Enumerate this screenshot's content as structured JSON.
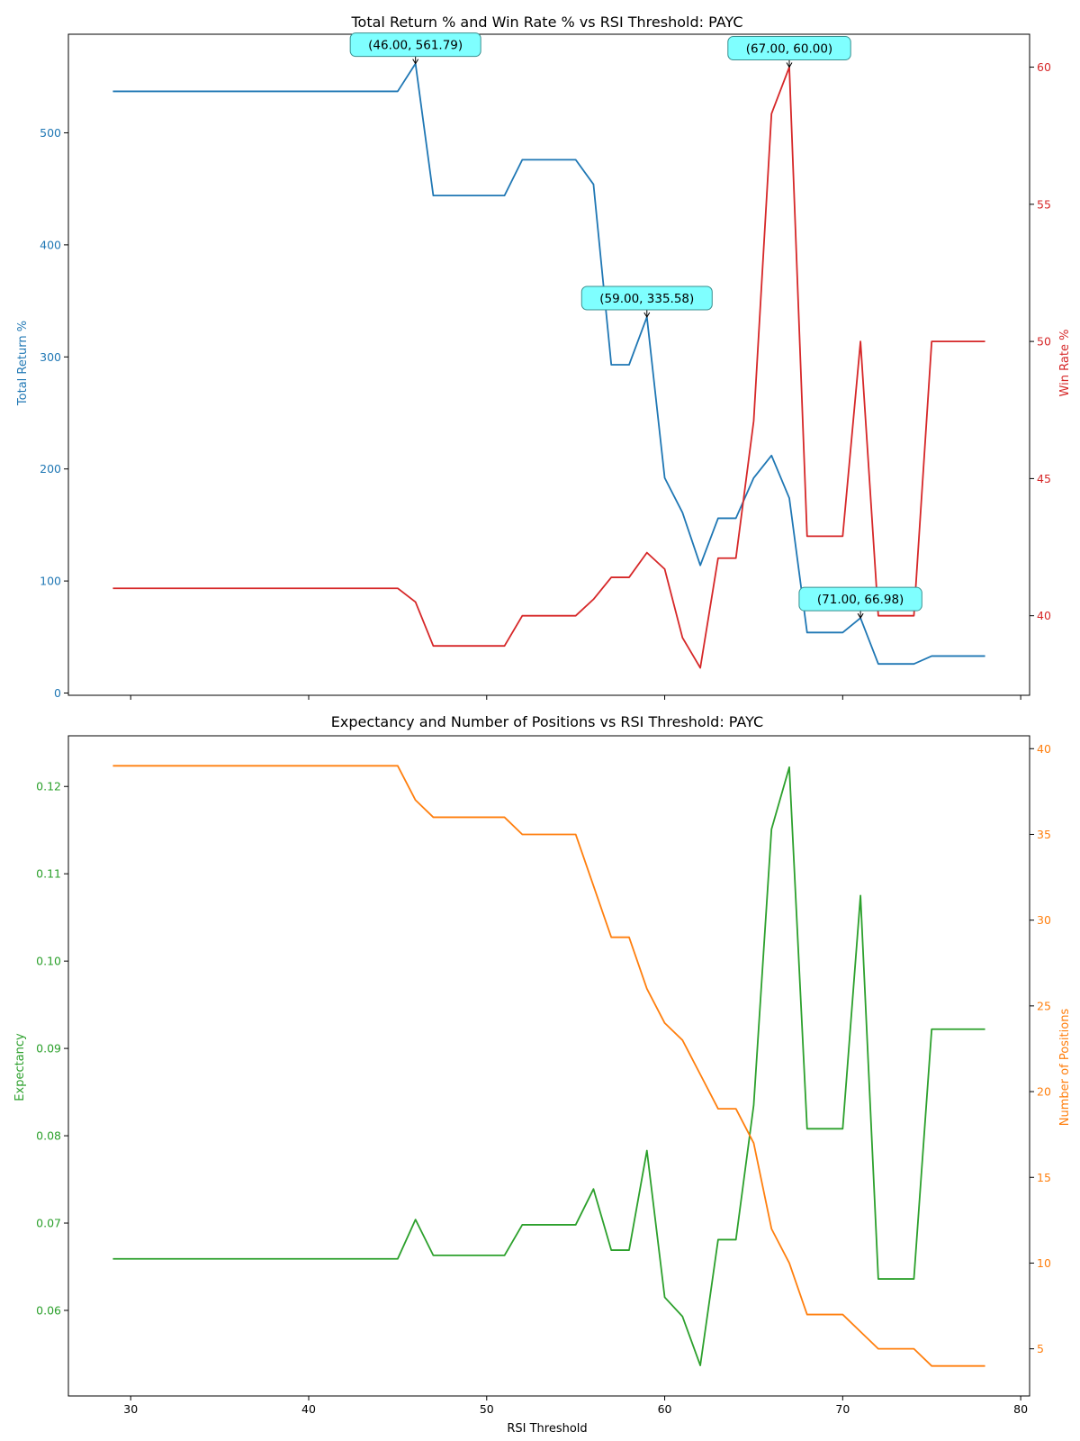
{
  "chart_data": [
    {
      "type": "line",
      "title": "Total Return % and Win Rate % vs RSI Threshold: PAYC",
      "xlabel": "",
      "xticks": [
        30,
        40,
        50,
        60,
        70,
        80
      ],
      "show_xticklabels": false,
      "xlim": [
        26.5,
        80.5
      ],
      "x": [
        29,
        30,
        31,
        32,
        33,
        34,
        35,
        36,
        37,
        38,
        39,
        40,
        41,
        42,
        43,
        44,
        45,
        46,
        47,
        48,
        49,
        50,
        51,
        52,
        53,
        54,
        55,
        56,
        57,
        58,
        59,
        60,
        61,
        62,
        63,
        64,
        65,
        66,
        67,
        68,
        69,
        70,
        71,
        72,
        73,
        74,
        75,
        76,
        77,
        78
      ],
      "left_axis": {
        "label": "Total Return %",
        "color": "#1f77b4",
        "ylim": [
          -2,
          588
        ],
        "ticks": [
          0,
          100,
          200,
          300,
          400,
          500
        ]
      },
      "right_axis": {
        "label": "Win Rate %",
        "color": "#d62728",
        "ylim": [
          37.1,
          61.2
        ],
        "ticks": [
          40,
          45,
          50,
          55,
          60
        ]
      },
      "series": [
        {
          "axis": "left",
          "color": "#1f77b4",
          "values": [
            537,
            537,
            537,
            537,
            537,
            537,
            537,
            537,
            537,
            537,
            537,
            537,
            537,
            537,
            537,
            537,
            537,
            561.79,
            444,
            444,
            444,
            444,
            444,
            476,
            476,
            476,
            476,
            454,
            293,
            293,
            335.58,
            192,
            161,
            114,
            156,
            156,
            192,
            212,
            174,
            54,
            54,
            54,
            66.98,
            26,
            26,
            26,
            33,
            33,
            33,
            33
          ]
        },
        {
          "axis": "right",
          "color": "#d62728",
          "values": [
            41,
            41,
            41,
            41,
            41,
            41,
            41,
            41,
            41,
            41,
            41,
            41,
            41,
            41,
            41,
            41,
            41,
            40.5,
            38.9,
            38.9,
            38.9,
            38.9,
            38.9,
            40,
            40,
            40,
            40,
            40.6,
            41.4,
            41.4,
            42.3,
            41.7,
            39.2,
            38.1,
            42.1,
            42.1,
            47.1,
            58.3,
            60,
            42.9,
            42.9,
            42.9,
            50,
            40,
            40,
            40,
            50,
            50,
            50,
            50
          ]
        }
      ],
      "annotations": [
        {
          "text": "(46.00, 561.79)",
          "x": 46,
          "y": 561.79,
          "axis": "left"
        },
        {
          "text": "(59.00, 335.58)",
          "x": 59,
          "y": 335.58,
          "axis": "left"
        },
        {
          "text": "(71.00, 66.98)",
          "x": 71,
          "y": 66.98,
          "axis": "left"
        },
        {
          "text": "(67.00, 60.00)",
          "x": 67,
          "y": 60.0,
          "axis": "right"
        }
      ]
    },
    {
      "type": "line",
      "title": "Expectancy and Number of Positions vs RSI Threshold: PAYC",
      "xlabel": "RSI Threshold",
      "xticks": [
        30,
        40,
        50,
        60,
        70,
        80
      ],
      "show_xticklabels": true,
      "xlim": [
        26.5,
        80.5
      ],
      "x": [
        29,
        30,
        31,
        32,
        33,
        34,
        35,
        36,
        37,
        38,
        39,
        40,
        41,
        42,
        43,
        44,
        45,
        46,
        47,
        48,
        49,
        50,
        51,
        52,
        53,
        54,
        55,
        56,
        57,
        58,
        59,
        60,
        61,
        62,
        63,
        64,
        65,
        66,
        67,
        68,
        69,
        70,
        71,
        72,
        73,
        74,
        75,
        76,
        77,
        78
      ],
      "left_axis": {
        "label": "Expectancy",
        "color": "#2ca02c",
        "ylim": [
          0.0502,
          0.1258
        ],
        "ticks": [
          0.06,
          0.07,
          0.08,
          0.09,
          0.1,
          0.11,
          0.12
        ],
        "decimals": 2
      },
      "right_axis": {
        "label": "Number of Positions",
        "color": "#ff7f0e",
        "ylim": [
          2.25,
          40.75
        ],
        "ticks": [
          5,
          10,
          15,
          20,
          25,
          30,
          35,
          40
        ]
      },
      "series": [
        {
          "axis": "left",
          "color": "#2ca02c",
          "values": [
            0.0659,
            0.0659,
            0.0659,
            0.0659,
            0.0659,
            0.0659,
            0.0659,
            0.0659,
            0.0659,
            0.0659,
            0.0659,
            0.0659,
            0.0659,
            0.0659,
            0.0659,
            0.0659,
            0.0659,
            0.0704,
            0.0663,
            0.0663,
            0.0663,
            0.0663,
            0.0663,
            0.0698,
            0.0698,
            0.0698,
            0.0698,
            0.0739,
            0.0669,
            0.0669,
            0.0783,
            0.0615,
            0.0593,
            0.0537,
            0.0681,
            0.0681,
            0.0835,
            0.1151,
            0.1222,
            0.0808,
            0.0808,
            0.0808,
            0.1075,
            0.0636,
            0.0636,
            0.0636,
            0.0922,
            0.0922,
            0.0922,
            0.0922
          ]
        },
        {
          "axis": "right",
          "color": "#ff7f0e",
          "values": [
            39,
            39,
            39,
            39,
            39,
            39,
            39,
            39,
            39,
            39,
            39,
            39,
            39,
            39,
            39,
            39,
            39,
            37,
            36,
            36,
            36,
            36,
            36,
            35,
            35,
            35,
            35,
            32,
            29,
            29,
            26,
            24,
            23,
            21,
            19,
            19,
            17,
            12,
            10,
            7,
            7,
            7,
            6,
            5,
            5,
            5,
            4,
            4,
            4,
            4
          ]
        }
      ],
      "annotations": []
    }
  ]
}
